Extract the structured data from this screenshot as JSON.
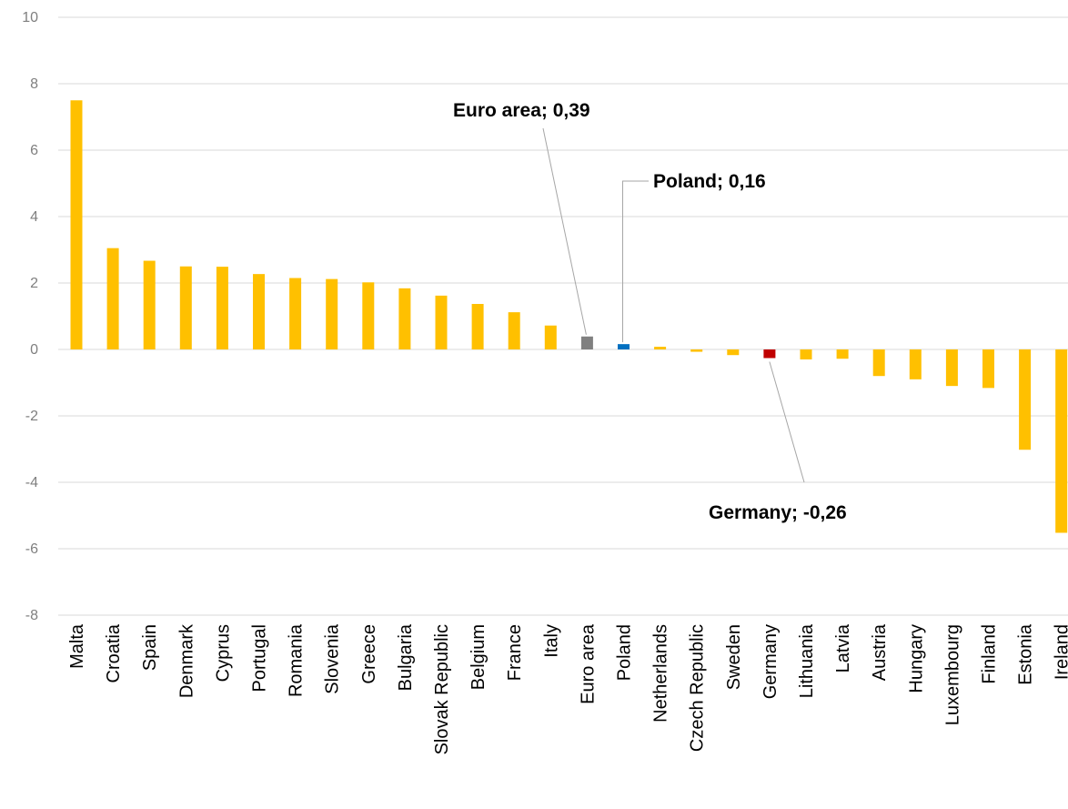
{
  "chart_data": {
    "type": "bar",
    "categories": [
      "Malta",
      "Croatia",
      "Spain",
      "Denmark",
      "Cyprus",
      "Portugal",
      "Romania",
      "Slovenia",
      "Greece",
      "Bulgaria",
      "Slovak Republic",
      "Belgium",
      "France",
      "Italy",
      "Euro area",
      "Poland",
      "Netherlands",
      "Czech Republic",
      "Sweden",
      "Germany",
      "Lithuania",
      "Latvia",
      "Austria",
      "Hungary",
      "Luxembourg",
      "Finland",
      "Estonia",
      "Ireland"
    ],
    "values": [
      7.5,
      3.05,
      2.67,
      2.5,
      2.49,
      2.27,
      2.15,
      2.12,
      2.02,
      1.84,
      1.62,
      1.37,
      1.12,
      0.72,
      0.39,
      0.16,
      0.08,
      -0.07,
      -0.17,
      -0.26,
      -0.3,
      -0.28,
      -0.8,
      -0.9,
      -1.1,
      -1.16,
      -3.02,
      -5.52
    ],
    "ylim": [
      -8,
      10
    ],
    "yticks": [
      -8,
      -6,
      -4,
      -2,
      0,
      2,
      4,
      6,
      8,
      10
    ],
    "grid": true,
    "title": "",
    "xlabel": "",
    "ylabel": "",
    "colors": {
      "default": "#FFC000",
      "highlights": {
        "Euro area": "#808080",
        "Poland": "#0070C0",
        "Germany": "#C00000"
      }
    },
    "annotations": [
      {
        "category": "Euro area",
        "text": "Euro area; 0,39"
      },
      {
        "category": "Poland",
        "text": "Poland; 0,16"
      },
      {
        "category": "Germany",
        "text": "Germany; -0,26"
      }
    ]
  }
}
